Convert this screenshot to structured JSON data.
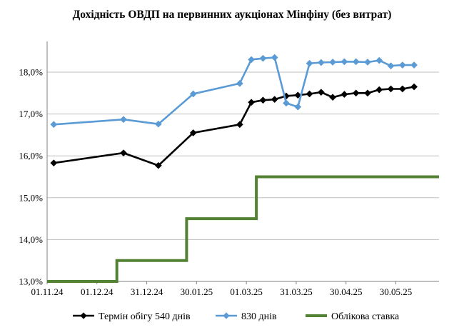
{
  "chart_data": {
    "type": "line",
    "title": "Дохідність ОВДП на первинних аукціонах Мінфіну (без витрат)",
    "xlabel": "",
    "ylabel": "",
    "x_ticks": [
      "01.11.24",
      "01.12.24",
      "31.12.24",
      "30.01.25",
      "01.03.25",
      "31.03.25",
      "30.04.25",
      "30.05.25"
    ],
    "y_ticks": [
      "13,0%",
      "14,0%",
      "15,0%",
      "16,0%",
      "17,0%",
      "18,0%"
    ],
    "ylim": [
      13.0,
      18.7
    ],
    "xlim": [
      "2024-11-01",
      "2025-06-25"
    ],
    "grid": "horizontal",
    "legend_position": "bottom",
    "series": [
      {
        "name": "Термін обігу 540 днів",
        "color": "#000000",
        "marker": "diamond",
        "points": [
          [
            "2024-11-05",
            15.83
          ],
          [
            "2024-12-17",
            16.07
          ],
          [
            "2025-01-07",
            15.77
          ],
          [
            "2025-01-28",
            16.55
          ],
          [
            "2025-02-25",
            16.75
          ],
          [
            "2025-03-04",
            17.28
          ],
          [
            "2025-03-11",
            17.33
          ],
          [
            "2025-03-18",
            17.35
          ],
          [
            "2025-03-25",
            17.43
          ],
          [
            "2025-04-01",
            17.45
          ],
          [
            "2025-04-08",
            17.48
          ],
          [
            "2025-04-15",
            17.52
          ],
          [
            "2025-04-22",
            17.4
          ],
          [
            "2025-04-29",
            17.47
          ],
          [
            "2025-05-06",
            17.5
          ],
          [
            "2025-05-13",
            17.5
          ],
          [
            "2025-05-20",
            17.58
          ],
          [
            "2025-05-27",
            17.6
          ],
          [
            "2025-06-03",
            17.6
          ],
          [
            "2025-06-10",
            17.65
          ]
        ]
      },
      {
        "name": "830 днів",
        "color": "#5b9bd5",
        "marker": "diamond",
        "points": [
          [
            "2024-11-05",
            16.75
          ],
          [
            "2024-12-17",
            16.87
          ],
          [
            "2025-01-07",
            16.76
          ],
          [
            "2025-01-28",
            17.48
          ],
          [
            "2025-02-25",
            17.73
          ],
          [
            "2025-03-04",
            18.3
          ],
          [
            "2025-03-11",
            18.33
          ],
          [
            "2025-03-18",
            18.35
          ],
          [
            "2025-03-25",
            17.26
          ],
          [
            "2025-04-01",
            17.17
          ],
          [
            "2025-04-08",
            18.21
          ],
          [
            "2025-04-15",
            18.23
          ],
          [
            "2025-04-22",
            18.24
          ],
          [
            "2025-04-29",
            18.25
          ],
          [
            "2025-05-06",
            18.25
          ],
          [
            "2025-05-13",
            18.24
          ],
          [
            "2025-05-20",
            18.28
          ],
          [
            "2025-05-27",
            18.15
          ],
          [
            "2025-06-03",
            18.17
          ],
          [
            "2025-06-10",
            18.17
          ]
        ]
      },
      {
        "name": "Облікова ставка",
        "color": "#548235",
        "marker": "none",
        "step": true,
        "points": [
          [
            "2024-11-01",
            13.0
          ],
          [
            "2024-12-13",
            13.0
          ],
          [
            "2024-12-13",
            13.5
          ],
          [
            "2025-01-24",
            13.5
          ],
          [
            "2025-01-24",
            14.5
          ],
          [
            "2025-03-07",
            14.5
          ],
          [
            "2025-03-07",
            15.5
          ],
          [
            "2025-06-25",
            15.5
          ]
        ]
      }
    ]
  }
}
